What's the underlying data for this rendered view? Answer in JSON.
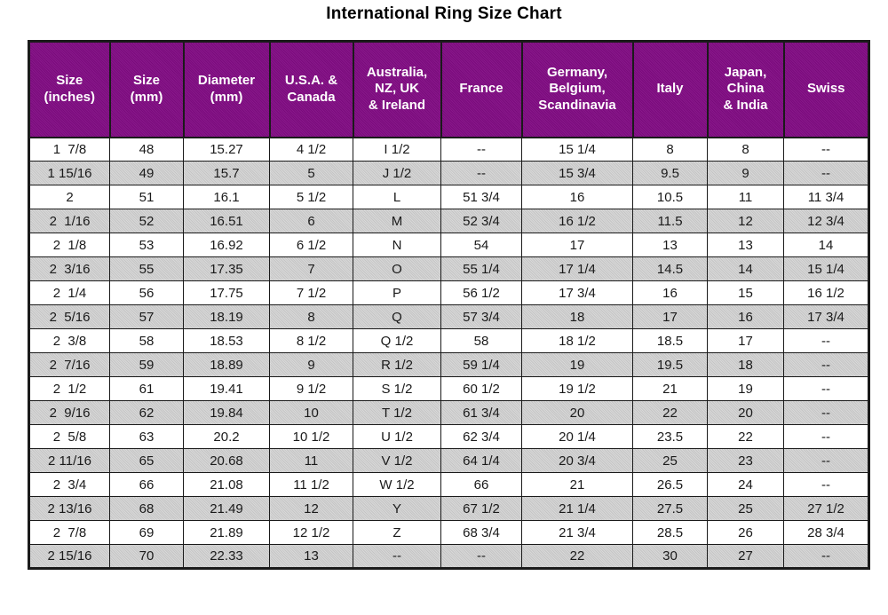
{
  "page_title": "International Ring Size Chart",
  "colors": {
    "header_bg": "#820C84",
    "header_text": "#FFFFFF",
    "alt_row_bg": "#CBCBCB",
    "row_bg": "#FFFFFF",
    "grid_border": "#1A1A1A",
    "text": "#1A1A1A",
    "title_text": "#000000"
  },
  "chart_data": {
    "type": "table",
    "title": "International Ring Size Chart",
    "na_marker": "--",
    "layout_hints": {
      "header_style": "purple background, white bold text",
      "row_striping": "white / light gray alternating, gray starts on second data row",
      "grid": "on"
    },
    "columns": [
      "Size (inches)",
      "Size (mm)",
      "Diameter (mm)",
      "U.S.A. & Canada",
      "Australia, NZ, UK & Ireland",
      "France",
      "Germany, Belgium, Scandinavia",
      "Italy",
      "Japan, China & India",
      "Swiss"
    ],
    "columns_display": [
      "Size\n(inches)",
      "Size\n(mm)",
      "Diameter\n(mm)",
      "U.S.A. &\nCanada",
      "Australia,\nNZ, UK\n& Ireland",
      "France",
      "Germany,\nBelgium,\nScandinavia",
      "Italy",
      "Japan,\nChina\n& India",
      "Swiss"
    ],
    "rows": [
      [
        "1  7/8",
        "48",
        "15.27",
        "4 1/2",
        "I 1/2",
        "--",
        "15 1/4",
        "8",
        "8",
        "--"
      ],
      [
        "1 15/16",
        "49",
        "15.7",
        "5",
        "J 1/2",
        "--",
        "15 3/4",
        "9.5",
        "9",
        "--"
      ],
      [
        "2",
        "51",
        "16.1",
        "5 1/2",
        "L",
        "51 3/4",
        "16",
        "10.5",
        "11",
        "11 3/4"
      ],
      [
        "2  1/16",
        "52",
        "16.51",
        "6",
        "M",
        "52 3/4",
        "16 1/2",
        "11.5",
        "12",
        "12 3/4"
      ],
      [
        "2  1/8",
        "53",
        "16.92",
        "6 1/2",
        "N",
        "54",
        "17",
        "13",
        "13",
        "14"
      ],
      [
        "2  3/16",
        "55",
        "17.35",
        "7",
        "O",
        "55 1/4",
        "17 1/4",
        "14.5",
        "14",
        "15 1/4"
      ],
      [
        "2  1/4",
        "56",
        "17.75",
        "7 1/2",
        "P",
        "56 1/2",
        "17 3/4",
        "16",
        "15",
        "16 1/2"
      ],
      [
        "2  5/16",
        "57",
        "18.19",
        "8",
        "Q",
        "57 3/4",
        "18",
        "17",
        "16",
        "17 3/4"
      ],
      [
        "2  3/8",
        "58",
        "18.53",
        "8 1/2",
        "Q 1/2",
        "58",
        "18 1/2",
        "18.5",
        "17",
        "--"
      ],
      [
        "2  7/16",
        "59",
        "18.89",
        "9",
        "R 1/2",
        "59 1/4",
        "19",
        "19.5",
        "18",
        "--"
      ],
      [
        "2  1/2",
        "61",
        "19.41",
        "9 1/2",
        "S 1/2",
        "60 1/2",
        "19 1/2",
        "21",
        "19",
        "--"
      ],
      [
        "2  9/16",
        "62",
        "19.84",
        "10",
        "T 1/2",
        "61 3/4",
        "20",
        "22",
        "20",
        "--"
      ],
      [
        "2  5/8",
        "63",
        "20.2",
        "10 1/2",
        "U 1/2",
        "62 3/4",
        "20 1/4",
        "23.5",
        "22",
        "--"
      ],
      [
        "2 11/16",
        "65",
        "20.68",
        "11",
        "V 1/2",
        "64 1/4",
        "20 3/4",
        "25",
        "23",
        "--"
      ],
      [
        "2  3/4",
        "66",
        "21.08",
        "11 1/2",
        "W 1/2",
        "66",
        "21",
        "26.5",
        "24",
        "--"
      ],
      [
        "2 13/16",
        "68",
        "21.49",
        "12",
        "Y",
        "67 1/2",
        "21 1/4",
        "27.5",
        "25",
        "27 1/2"
      ],
      [
        "2  7/8",
        "69",
        "21.89",
        "12 1/2",
        "Z",
        "68 3/4",
        "21 3/4",
        "28.5",
        "26",
        "28 3/4"
      ],
      [
        "2 15/16",
        "70",
        "22.33",
        "13",
        "--",
        "--",
        "22",
        "30",
        "27",
        "--"
      ]
    ]
  }
}
